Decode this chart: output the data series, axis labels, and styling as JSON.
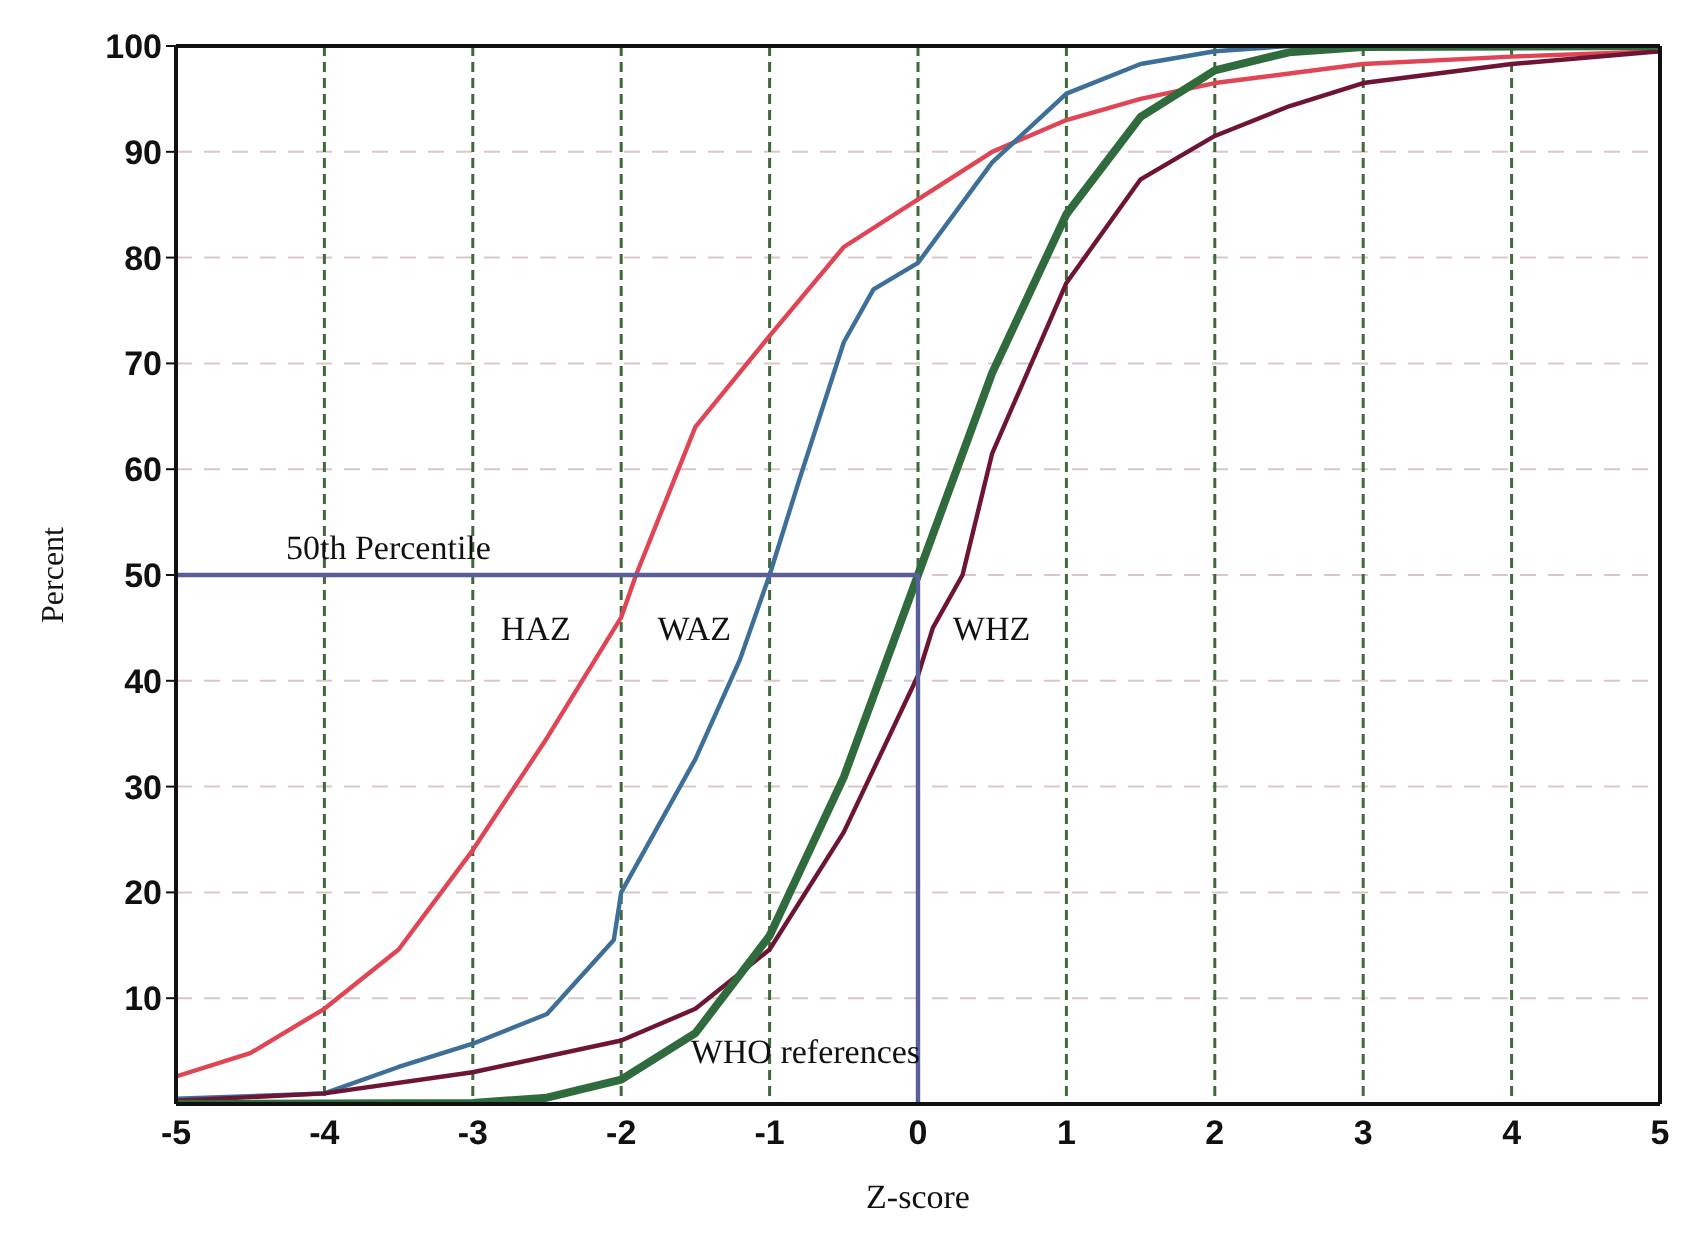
{
  "chart_data": {
    "type": "line",
    "xlabel": "Z-score",
    "ylabel": "Percent",
    "xlim": [
      -5,
      5
    ],
    "xticks": [
      -5,
      -4,
      -3,
      -2,
      -1,
      0,
      1,
      2,
      3,
      4,
      5
    ],
    "ylim": [
      0,
      100
    ],
    "yticks": [
      10,
      20,
      30,
      40,
      50,
      60,
      70,
      80,
      90,
      100
    ],
    "grid": true,
    "marker": "none",
    "line_style": "solid",
    "series": [
      {
        "name": "HAZ",
        "color": "#e04555",
        "x": [
          -5,
          -4.5,
          -4,
          -3.5,
          -3,
          -2.5,
          -2,
          -1.9,
          -1.5,
          -1,
          -0.5,
          0,
          0.5,
          1,
          1.5,
          2,
          3,
          4,
          5
        ],
        "values": [
          2.6,
          4.8,
          9,
          14.6,
          24,
          34.6,
          46,
          50,
          64,
          72.6,
          81,
          85.5,
          90,
          93,
          95,
          96.5,
          98.3,
          99,
          99.5
        ]
      },
      {
        "name": "WAZ",
        "color": "#3d6f99",
        "x": [
          -5,
          -4,
          -3.5,
          -3,
          -2.5,
          -2.05,
          -2,
          -1.5,
          -1.2,
          -1,
          -0.8,
          -0.5,
          -0.3,
          0,
          0.5,
          1,
          1.5,
          2,
          2.5,
          5
        ],
        "values": [
          0.5,
          1,
          3.5,
          5.7,
          8.5,
          15.5,
          20,
          32.6,
          42,
          50,
          59,
          72,
          77,
          79.5,
          89,
          95.5,
          98.3,
          99.5,
          100,
          100
        ]
      },
      {
        "name": "WHZ",
        "color": "#6e1535",
        "x": [
          -5,
          -4,
          -3,
          -2,
          -1.5,
          -1,
          -0.5,
          0,
          0.1,
          0.3,
          0.5,
          1,
          1.5,
          2,
          2.5,
          3,
          4,
          5
        ],
        "values": [
          0.3,
          1,
          3,
          6,
          9,
          14.6,
          25.7,
          40.5,
          45,
          50,
          61.5,
          77.6,
          87.4,
          91.5,
          94.3,
          96.5,
          98.3,
          99.5
        ]
      },
      {
        "name": "WHO references",
        "color": "#2f6b3c",
        "x": [
          -5,
          -3,
          -2.5,
          -2,
          -1.5,
          -1,
          -0.5,
          0,
          0.5,
          1,
          1.5,
          2,
          2.5,
          3,
          5
        ],
        "values": [
          0,
          0.1,
          0.6,
          2.3,
          6.7,
          15.9,
          30.9,
          50,
          69.1,
          84.1,
          93.3,
          97.7,
          99.4,
          99.9,
          100
        ]
      },
      {
        "color": "#5a5f9a",
        "x": [
          -5,
          0,
          0
        ],
        "values": [
          50,
          50,
          0
        ]
      }
    ],
    "annotations": [
      "50th Percentile"
    ]
  }
}
